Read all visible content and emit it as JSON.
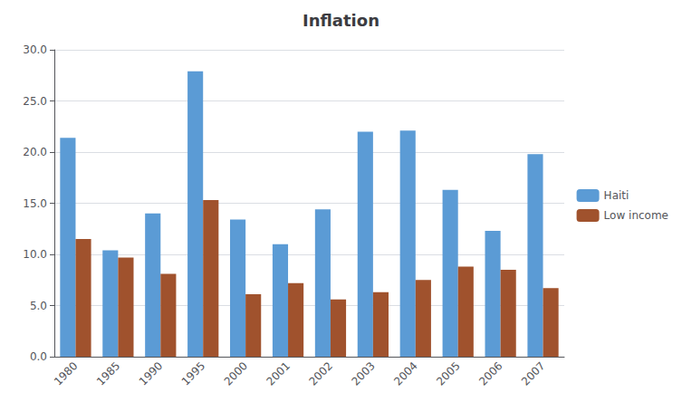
{
  "chart_data": {
    "type": "bar",
    "title": "Inflation",
    "categories": [
      "1980",
      "1985",
      "1990",
      "1995",
      "2000",
      "2001",
      "2002",
      "2003",
      "2004",
      "2005",
      "2006",
      "2007"
    ],
    "series": [
      {
        "name": "Haiti",
        "color": "#5B9BD5",
        "values": [
          21.4,
          10.4,
          14.0,
          27.9,
          13.4,
          11.0,
          14.4,
          22.0,
          22.1,
          16.3,
          12.3,
          19.8
        ]
      },
      {
        "name": "Low income",
        "color": "#A0522D",
        "values": [
          11.5,
          9.7,
          8.1,
          15.3,
          6.1,
          7.2,
          5.6,
          6.3,
          7.5,
          8.8,
          8.5,
          6.7
        ]
      }
    ],
    "ylim": [
      0.0,
      30.0
    ],
    "yticks": [
      {
        "value": 0,
        "label": "0.0"
      },
      {
        "value": 5,
        "label": "5.0"
      },
      {
        "value": 10,
        "label": "10.0"
      },
      {
        "value": 15,
        "label": "15.0"
      },
      {
        "value": 20,
        "label": "20.0"
      },
      {
        "value": 25,
        "label": "25.0"
      },
      {
        "value": 30,
        "label": "30.0"
      }
    ],
    "grid": true,
    "legend": "right"
  }
}
